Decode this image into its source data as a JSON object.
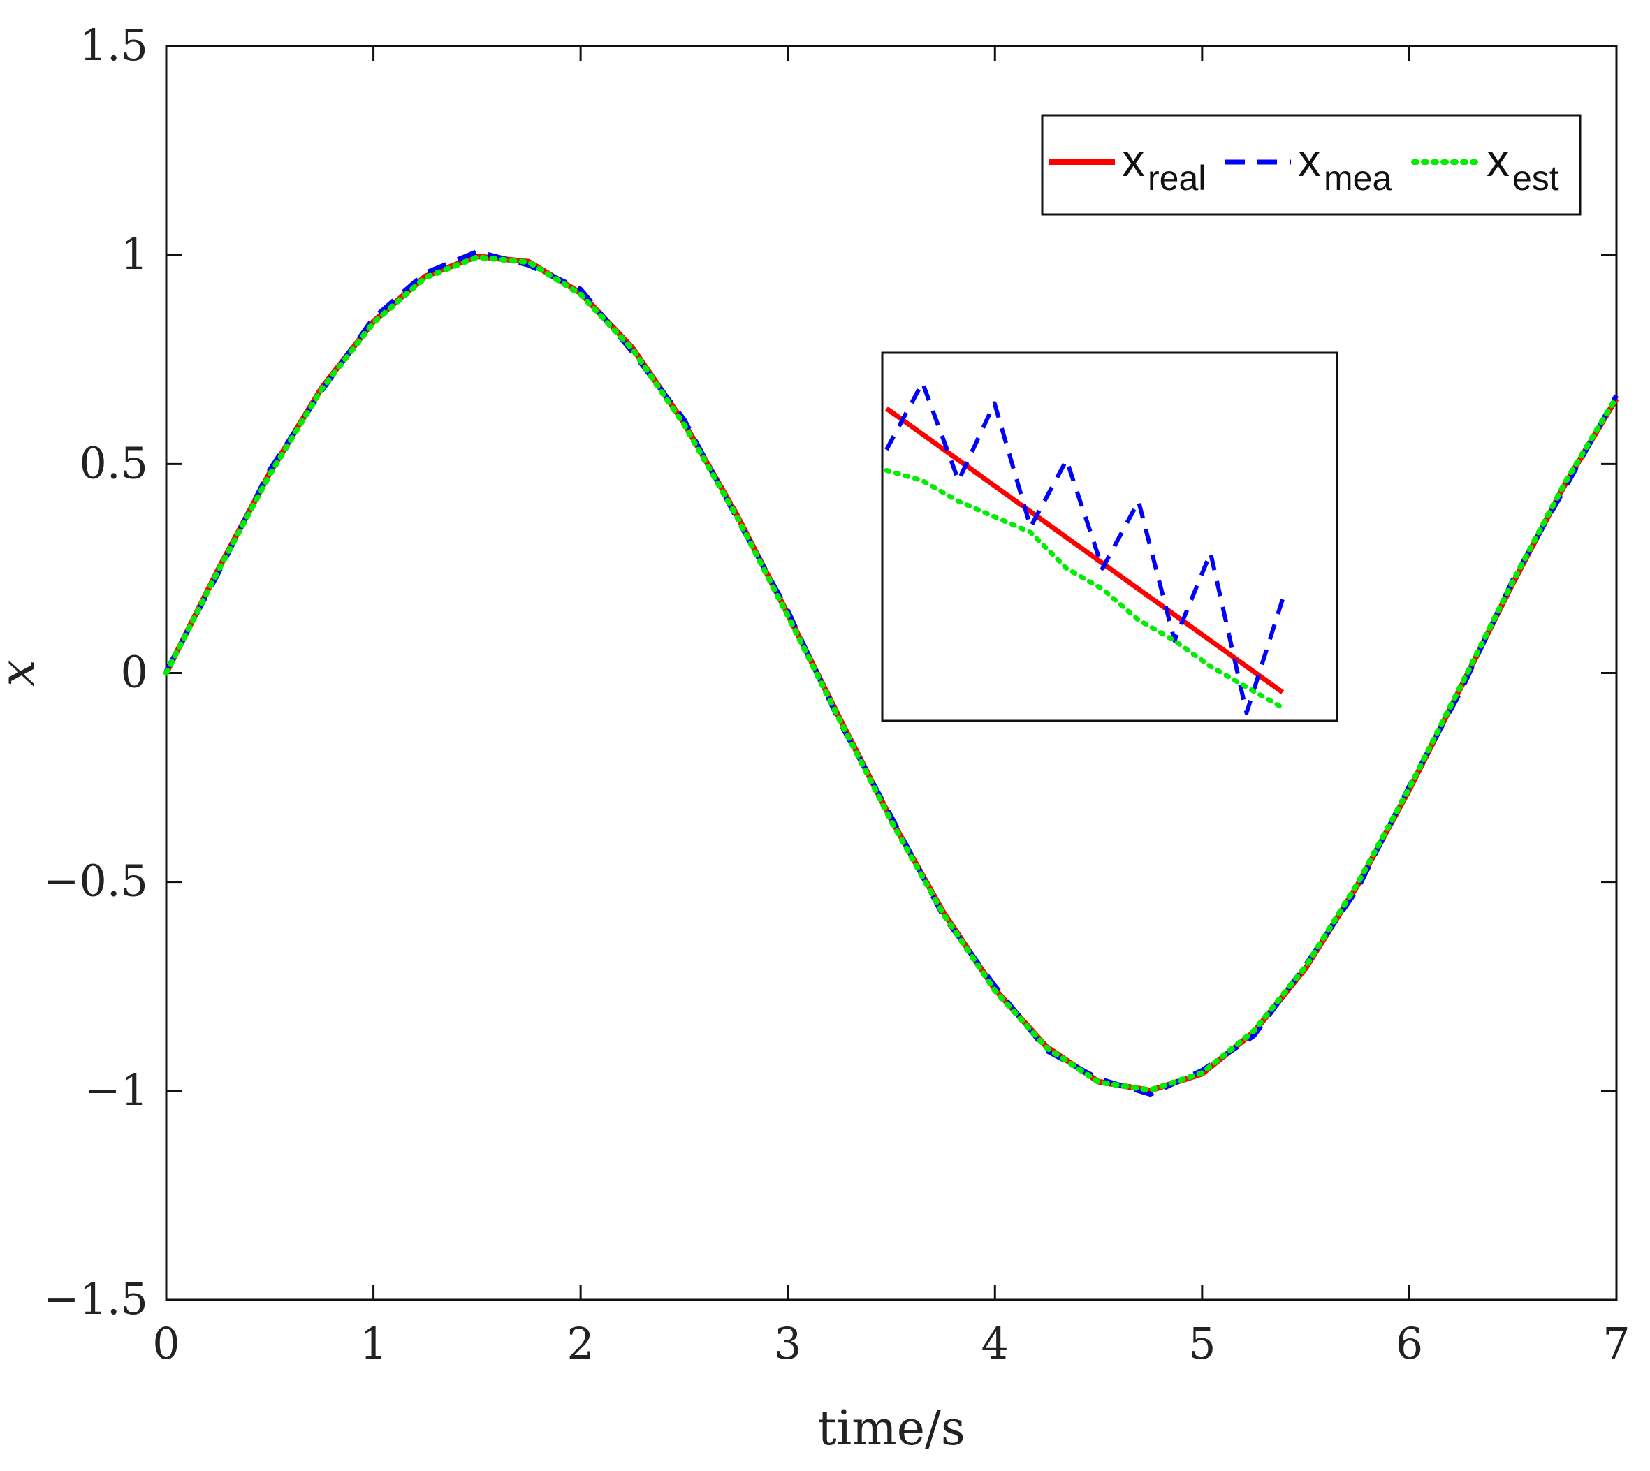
{
  "chart_data": {
    "type": "line",
    "title": "",
    "xlabel": "time/s",
    "ylabel": "x",
    "xlim": [
      0,
      7
    ],
    "ylim": [
      -1.5,
      1.5
    ],
    "xticks": [
      0,
      1,
      2,
      3,
      4,
      5,
      6,
      7
    ],
    "yticks": [
      -1.5,
      -1,
      -0.5,
      0,
      0.5,
      1,
      1.5
    ],
    "xtick_labels": [
      "0",
      "1",
      "2",
      "3",
      "4",
      "5",
      "6",
      "7"
    ],
    "ytick_labels": [
      "−1.5",
      "−1",
      "−0.5",
      "0",
      "0.5",
      "1",
      "1.5"
    ],
    "grid": false,
    "legend_position": "top-right",
    "legend_orientation": "horizontal",
    "series": [
      {
        "name": "x_real",
        "legend_main": "x",
        "legend_sub": "real",
        "color": "#ff0000",
        "style": "solid",
        "x": [
          0,
          0.25,
          0.5,
          0.75,
          1,
          1.25,
          1.5,
          1.75,
          2,
          2.25,
          2.5,
          2.75,
          3,
          3.25,
          3.5,
          3.75,
          4,
          4.25,
          4.5,
          4.75,
          5,
          5.25,
          5.5,
          5.75,
          6,
          6.25,
          6.5,
          6.75,
          7
        ],
        "y": [
          0,
          0.247,
          0.479,
          0.682,
          0.841,
          0.949,
          0.997,
          0.984,
          0.909,
          0.778,
          0.598,
          0.382,
          0.141,
          -0.108,
          -0.351,
          -0.572,
          -0.757,
          -0.895,
          -0.978,
          -0.999,
          -0.959,
          -0.859,
          -0.706,
          -0.508,
          -0.279,
          -0.033,
          0.215,
          0.45,
          0.657
        ]
      },
      {
        "name": "x_mea",
        "legend_main": "x",
        "legend_sub": "mea",
        "color": "#0000ff",
        "style": "dashed",
        "x": [
          0,
          0.25,
          0.5,
          0.75,
          1,
          1.25,
          1.5,
          1.75,
          2,
          2.25,
          2.5,
          2.75,
          3,
          3.25,
          3.5,
          3.75,
          4,
          4.25,
          4.5,
          4.75,
          5,
          5.25,
          5.5,
          5.75,
          6,
          6.25,
          6.5,
          6.75,
          7
        ],
        "y": [
          0.004,
          0.238,
          0.486,
          0.675,
          0.849,
          0.957,
          1.008,
          0.976,
          0.918,
          0.768,
          0.606,
          0.374,
          0.149,
          -0.117,
          -0.344,
          -0.581,
          -0.749,
          -0.904,
          -0.971,
          -1.008,
          -0.951,
          -0.868,
          -0.698,
          -0.517,
          -0.271,
          -0.042,
          0.223,
          0.441,
          0.664
        ]
      },
      {
        "name": "x_est",
        "legend_main": "x",
        "legend_sub": "est",
        "color": "#00ee00",
        "style": "dotted",
        "x": [
          0,
          0.25,
          0.5,
          0.75,
          1,
          1.25,
          1.5,
          1.75,
          2,
          2.25,
          2.5,
          2.75,
          3,
          3.25,
          3.5,
          3.75,
          4,
          4.25,
          4.5,
          4.75,
          5,
          5.25,
          5.5,
          5.75,
          6,
          6.25,
          6.5,
          6.75,
          7
        ],
        "y": [
          0,
          0.244,
          0.475,
          0.679,
          0.838,
          0.946,
          0.995,
          0.983,
          0.906,
          0.775,
          0.594,
          0.378,
          0.137,
          -0.112,
          -0.355,
          -0.576,
          -0.76,
          -0.897,
          -0.979,
          -0.998,
          -0.957,
          -0.856,
          -0.702,
          -0.504,
          -0.275,
          -0.029,
          0.219,
          0.454,
          0.66
        ]
      }
    ],
    "inset": {
      "real_y": [
        0.55,
        0.5,
        0.45,
        0.4,
        0.35,
        0.3,
        0.25,
        0.2,
        0.15,
        0.1,
        0.05,
        0.0
      ],
      "mea_y": [
        0.47,
        0.6,
        0.41,
        0.56,
        0.32,
        0.45,
        0.24,
        0.37,
        0.1,
        0.27,
        -0.04,
        0.18
      ],
      "est_y": [
        0.43,
        0.41,
        0.37,
        0.34,
        0.31,
        0.24,
        0.2,
        0.14,
        0.1,
        0.05,
        0.01,
        -0.03
      ]
    }
  }
}
